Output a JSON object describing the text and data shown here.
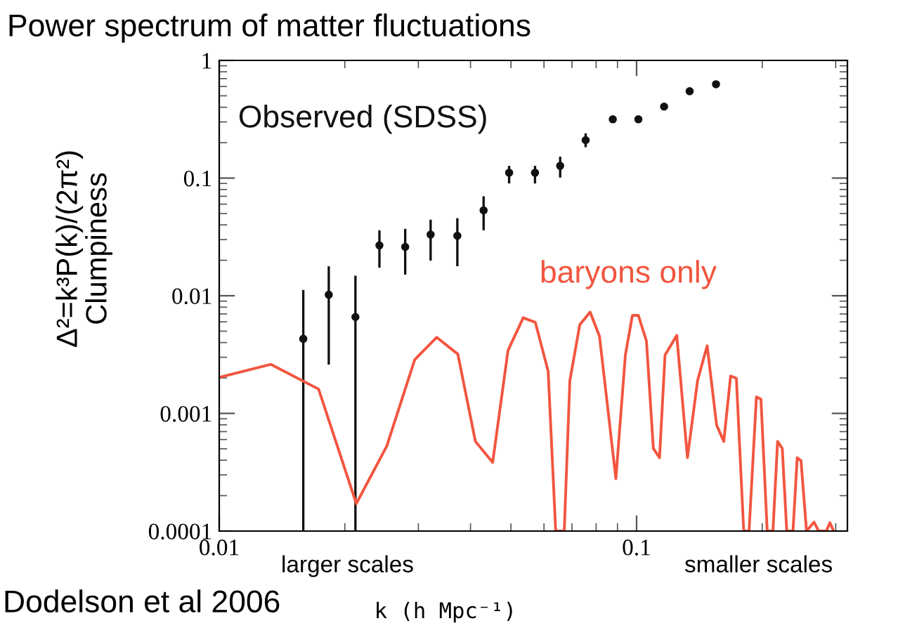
{
  "chart_data": {
    "type": "line",
    "title": "Power spectrum of matter fluctuations",
    "xlabel": "k (h Mpc⁻¹)",
    "ylabel": "Δ²=k³P(k)/(2π²)\nClumpiness",
    "log": "xy",
    "xlim": [
      0.01,
      0.32
    ],
    "xticks": [
      0.01,
      0.1
    ],
    "ylim": [
      0.0001,
      1
    ],
    "yticks": [
      0.0001,
      0.001,
      0.01,
      0.1,
      1
    ],
    "grid": false,
    "legend": false,
    "annotations": [
      "larger scales",
      "smaller scales",
      "Dodelson et al 2006"
    ],
    "series": [
      {
        "name": "Observed (SDSS)",
        "type": "scatter",
        "marker": "circle",
        "color": "#111111",
        "x": [
          0.0159,
          0.0183,
          0.0212,
          0.0242,
          0.0279,
          0.0321,
          0.0372,
          0.043,
          0.0495,
          0.0571,
          0.0656,
          0.0755,
          0.0877,
          0.101,
          0.1164,
          0.134,
          0.155
        ],
        "values": [
          0.0043,
          0.0102,
          0.0066,
          0.0268,
          0.026,
          0.0331,
          0.0323,
          0.0532,
          0.111,
          0.111,
          0.127,
          0.21,
          0.316,
          0.316,
          0.405,
          0.547,
          0.627
        ],
        "errors": [
          [
            0.0001,
            0.0112
          ],
          [
            0.0026,
            0.0178
          ],
          [
            0.0001,
            0.0148
          ],
          [
            0.0173,
            0.036
          ],
          [
            0.0151,
            0.037
          ],
          [
            0.0199,
            0.0443
          ],
          [
            0.0178,
            0.0456
          ],
          [
            0.036,
            0.07
          ],
          [
            0.09,
            0.127
          ],
          [
            0.09,
            0.127
          ],
          [
            0.101,
            0.152
          ],
          [
            0.183,
            0.24
          ],
          null,
          null,
          null,
          null,
          null
        ]
      },
      {
        "name": "baryons only",
        "marker": "none",
        "line_style": "solid",
        "color": "#f2553f",
        "x": [
          0.01,
          0.0133,
          0.0173,
          0.0213,
          0.0252,
          0.0294,
          0.0332,
          0.0373,
          0.0411,
          0.0452,
          0.0492,
          0.0535,
          0.0572,
          0.0614,
          0.064,
          0.0671,
          0.0692,
          0.0731,
          0.0774,
          0.0815,
          0.0892,
          0.094,
          0.0977,
          0.101,
          0.1056,
          0.1097,
          0.1135,
          0.117,
          0.1248,
          0.1324,
          0.14,
          0.1476,
          0.1555,
          0.1618,
          0.168,
          0.1734,
          0.1806,
          0.186,
          0.1937,
          0.1986,
          0.2056,
          0.2122,
          0.2177,
          0.2234,
          0.229,
          0.237,
          0.2426,
          0.2477,
          0.2554,
          0.2662,
          0.273,
          0.285,
          0.2906,
          0.2966
        ],
        "values": [
          0.00202,
          0.00261,
          0.00161,
          0.000171,
          0.000527,
          0.00286,
          0.00443,
          0.00319,
          0.000578,
          0.000383,
          0.00343,
          0.0065,
          0.00594,
          0.00228,
          0.0001,
          0.0001,
          0.0019,
          0.00567,
          0.00726,
          0.00452,
          0.000278,
          0.00313,
          0.0068,
          0.0068,
          0.00412,
          0.000504,
          0.00042,
          0.00313,
          0.0046,
          0.00042,
          0.0019,
          0.00376,
          0.000796,
          0.000578,
          0.00208,
          0.00199,
          0.0001,
          0.0001,
          0.00138,
          0.00132,
          0.0001,
          0.0001,
          0.000578,
          0.000504,
          0.0001,
          0.0001,
          0.00042,
          0.000396,
          0.0001,
          0.000119,
          0.0001,
          0.0001,
          0.000118,
          0.0001
        ]
      }
    ]
  }
}
